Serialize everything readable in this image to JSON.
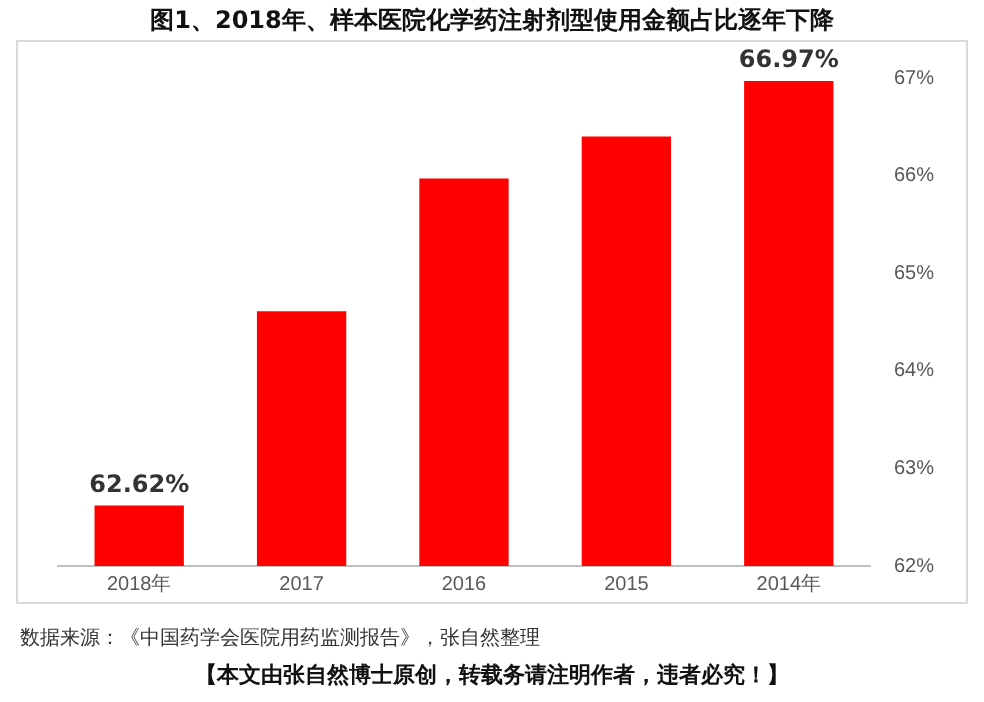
{
  "chart_data": {
    "type": "bar",
    "title": "图1、2018年、样本医院化学药注射剂型使用金额占比逐年下降",
    "categories": [
      "2018年",
      "2017",
      "2016",
      "2015",
      "2014年"
    ],
    "values": [
      62.62,
      64.61,
      65.97,
      66.4,
      66.97
    ],
    "color": "#ff0000",
    "value_labels": [
      "62.62%",
      null,
      null,
      null,
      "66.97%"
    ],
    "ylim": [
      62,
      67
    ],
    "yticks": [
      {
        "value": 62,
        "label": "62%"
      },
      {
        "value": 63,
        "label": "63%"
      },
      {
        "value": 64,
        "label": "64%"
      },
      {
        "value": 65,
        "label": "65%"
      },
      {
        "value": 66,
        "label": "66%"
      },
      {
        "value": 67,
        "label": "67%"
      }
    ],
    "grid": false,
    "annotations": [
      "数据来源：《中国药学会医院用药监测报告》，张自然整理",
      "【本文由张自然博士原创，转载务请注明作者，违者必究！】"
    ]
  }
}
